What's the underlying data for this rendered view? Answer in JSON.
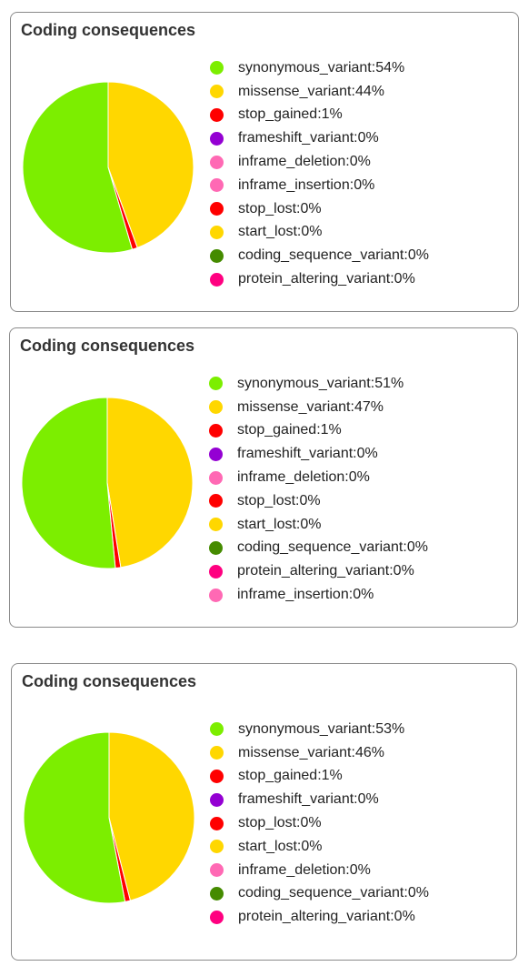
{
  "chart_data": [
    {
      "type": "pie",
      "title": "Coding consequences",
      "legend": "right",
      "categories": [
        "synonymous_variant",
        "missense_variant",
        "stop_gained",
        "frameshift_variant",
        "inframe_deletion",
        "inframe_insertion",
        "stop_lost",
        "start_lost",
        "coding_sequence_variant",
        "protein_altering_variant"
      ],
      "values": [
        54,
        44,
        1,
        0,
        0,
        0,
        0,
        0,
        0,
        0
      ],
      "value_labels": [
        "54%",
        "44%",
        "1%",
        "0%",
        "0%",
        "0%",
        "0%",
        "0%",
        "0%",
        "0%"
      ],
      "colors": [
        "#7CEE00",
        "#FFD700",
        "#FF0000",
        "#9400D3",
        "#FF69B4",
        "#FF69B4",
        "#FF0000",
        "#FFD700",
        "#458B00",
        "#FF0080"
      ]
    },
    {
      "type": "pie",
      "title": "Coding consequences",
      "legend": "right",
      "categories": [
        "synonymous_variant",
        "missense_variant",
        "stop_gained",
        "frameshift_variant",
        "inframe_deletion",
        "stop_lost",
        "start_lost",
        "coding_sequence_variant",
        "protein_altering_variant",
        "inframe_insertion"
      ],
      "values": [
        51,
        47,
        1,
        0,
        0,
        0,
        0,
        0,
        0,
        0
      ],
      "value_labels": [
        "51%",
        "47%",
        "1%",
        "0%",
        "0%",
        "0%",
        "0%",
        "0%",
        "0%",
        "0%"
      ],
      "colors": [
        "#7CEE00",
        "#FFD700",
        "#FF0000",
        "#9400D3",
        "#FF69B4",
        "#FF0000",
        "#FFD700",
        "#458B00",
        "#FF0080",
        "#FF69B4"
      ]
    },
    {
      "type": "pie",
      "title": "Coding consequences",
      "legend": "right",
      "categories": [
        "synonymous_variant",
        "missense_variant",
        "stop_gained",
        "frameshift_variant",
        "stop_lost",
        "start_lost",
        "inframe_deletion",
        "coding_sequence_variant",
        "protein_altering_variant"
      ],
      "values": [
        53,
        46,
        1,
        0,
        0,
        0,
        0,
        0,
        0
      ],
      "value_labels": [
        "53%",
        "46%",
        "1%",
        "0%",
        "0%",
        "0%",
        "0%",
        "0%",
        "0%"
      ],
      "colors": [
        "#7CEE00",
        "#FFD700",
        "#FF0000",
        "#9400D3",
        "#FF0000",
        "#FFD700",
        "#FF69B4",
        "#458B00",
        "#FF0080"
      ]
    }
  ]
}
